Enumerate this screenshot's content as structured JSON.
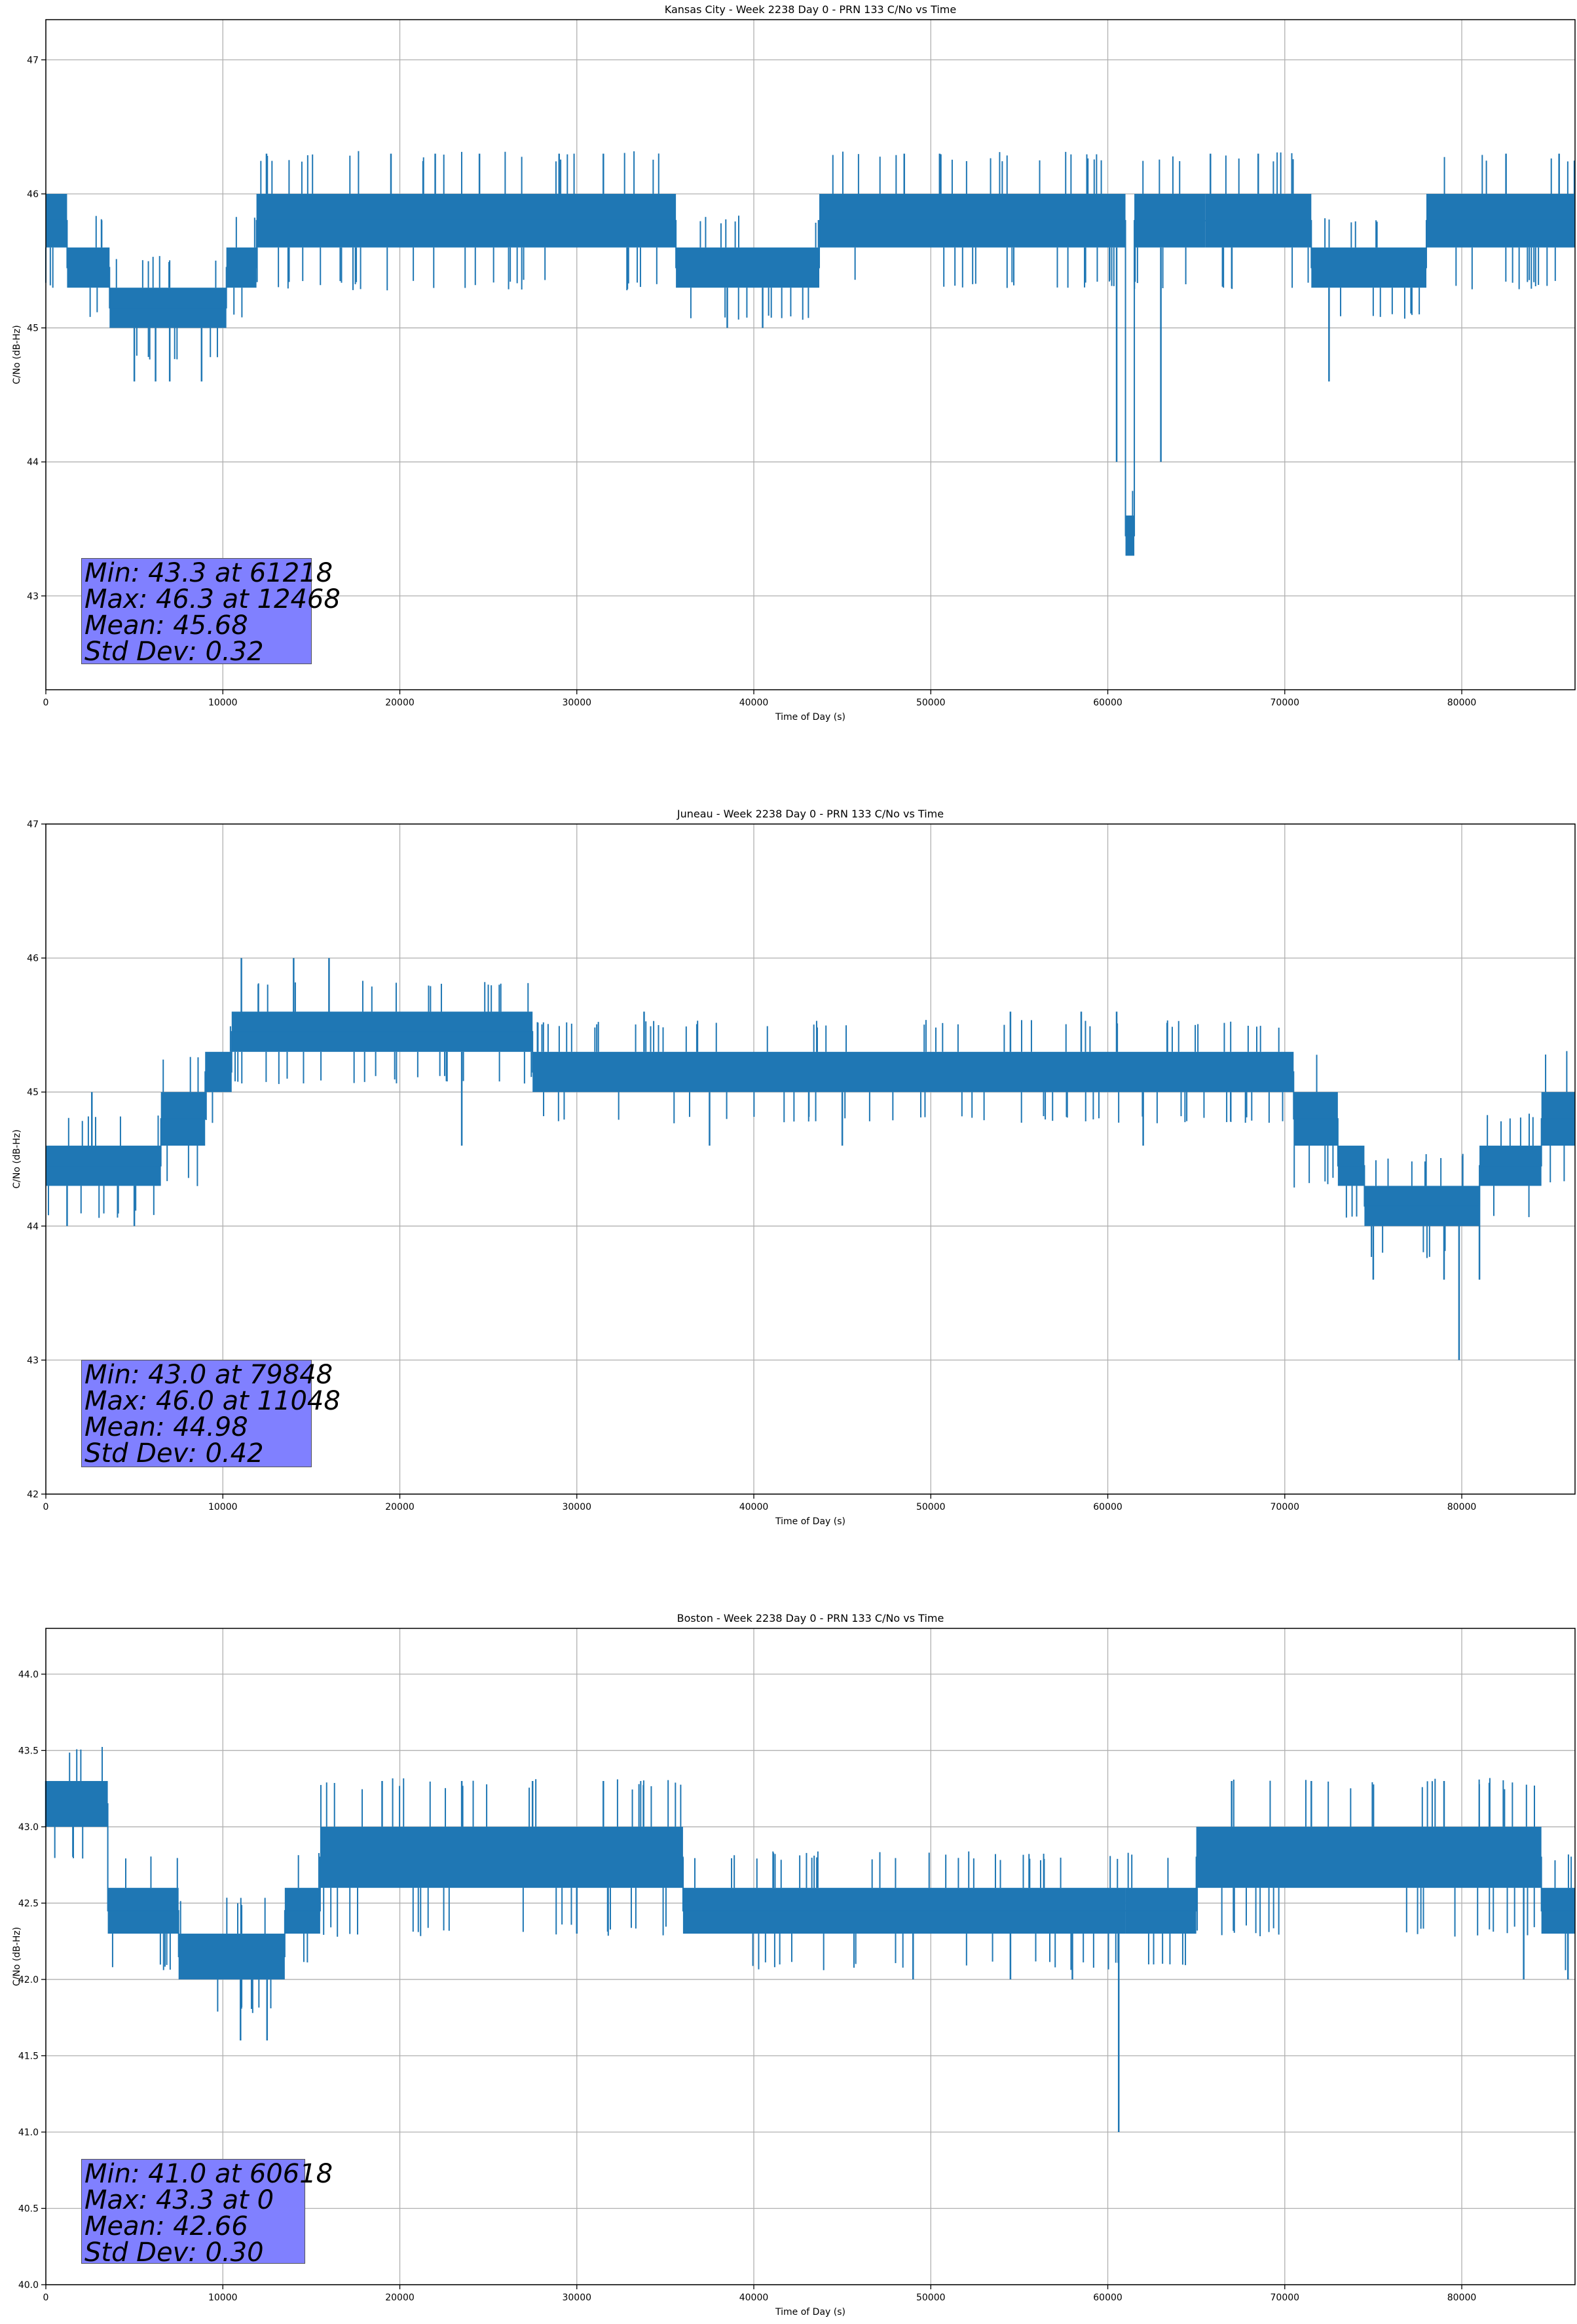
{
  "chart_data": [
    {
      "type": "line",
      "title": "Kansas City - Week 2238 Day 0 - PRN 133 C/No vs Time",
      "xlabel": "Time of Day (s)",
      "ylabel": "C/No (dB-Hz)",
      "xlim": [
        0,
        86400
      ],
      "ylim": [
        42.3,
        47.3
      ],
      "xticks": [
        0,
        10000,
        20000,
        30000,
        40000,
        50000,
        60000,
        70000,
        80000
      ],
      "yticks": [
        43,
        44,
        45,
        46,
        47
      ],
      "ytick_labels": [
        "43",
        "44",
        "45",
        "46",
        "47"
      ],
      "grid": true,
      "series_color": "#1f77b4",
      "stats": {
        "min": "Min: 43.3 at 61218",
        "max": "Max: 46.3 at 12468",
        "mean": "Mean: 45.68",
        "std": "Std Dev: 0.32"
      },
      "bands": [
        {
          "x": [
            0,
            1200
          ],
          "y": [
            45.6,
            46.0
          ]
        },
        {
          "x": [
            1200,
            3600
          ],
          "y": [
            45.3,
            45.6
          ]
        },
        {
          "x": [
            3600,
            10200
          ],
          "y": [
            45.0,
            45.3
          ]
        },
        {
          "x": [
            10200,
            11900
          ],
          "y": [
            45.3,
            45.6
          ]
        },
        {
          "x": [
            11900,
            35600
          ],
          "y": [
            45.6,
            46.0
          ]
        },
        {
          "x": [
            35600,
            43700
          ],
          "y": [
            45.3,
            45.6
          ]
        },
        {
          "x": [
            43700,
            61000
          ],
          "y": [
            45.6,
            46.0
          ]
        },
        {
          "x": [
            61000,
            61500
          ],
          "y": [
            43.3,
            43.6
          ]
        },
        {
          "x": [
            61500,
            65500
          ],
          "y": [
            45.6,
            46.0
          ]
        },
        {
          "x": [
            65500,
            71500
          ],
          "y": [
            45.6,
            46.0
          ]
        },
        {
          "x": [
            71500,
            78000
          ],
          "y": [
            45.3,
            45.6
          ]
        },
        {
          "x": [
            78000,
            86400
          ],
          "y": [
            45.6,
            46.0
          ]
        }
      ],
      "spikes": [
        {
          "x": 5000,
          "y": 44.6
        },
        {
          "x": 6200,
          "y": 44.6
        },
        {
          "x": 7000,
          "y": 44.6
        },
        {
          "x": 8800,
          "y": 44.6
        },
        {
          "x": 12468,
          "y": 46.3
        },
        {
          "x": 19500,
          "y": 46.3
        },
        {
          "x": 22000,
          "y": 46.3
        },
        {
          "x": 24500,
          "y": 46.3
        },
        {
          "x": 29000,
          "y": 46.3
        },
        {
          "x": 31500,
          "y": 46.3
        },
        {
          "x": 38500,
          "y": 45.0
        },
        {
          "x": 40500,
          "y": 45.0
        },
        {
          "x": 48500,
          "y": 46.3
        },
        {
          "x": 50500,
          "y": 46.3
        },
        {
          "x": 60500,
          "y": 44.0
        },
        {
          "x": 61218,
          "y": 43.3
        },
        {
          "x": 63000,
          "y": 44.0
        },
        {
          "x": 65800,
          "y": 46.3
        },
        {
          "x": 68500,
          "y": 46.3
        },
        {
          "x": 72500,
          "y": 44.6
        },
        {
          "x": 82500,
          "y": 46.3
        },
        {
          "x": 85500,
          "y": 46.3
        }
      ]
    },
    {
      "type": "line",
      "title": "Juneau - Week 2238 Day 0 - PRN 133 C/No vs Time",
      "xlabel": "Time of Day (s)",
      "ylabel": "C/No (dB-Hz)",
      "xlim": [
        0,
        86400
      ],
      "ylim": [
        42,
        47
      ],
      "xticks": [
        0,
        10000,
        20000,
        30000,
        40000,
        50000,
        60000,
        70000,
        80000
      ],
      "yticks": [
        42,
        43,
        44,
        45,
        46,
        47
      ],
      "ytick_labels": [
        "42",
        "43",
        "44",
        "45",
        "46",
        "47"
      ],
      "grid": true,
      "series_color": "#1f77b4",
      "stats": {
        "min": "Min: 43.0 at 79848",
        "max": "Max: 46.0 at 11048",
        "mean": "Mean: 44.98",
        "std": "Std Dev: 0.42"
      },
      "bands": [
        {
          "x": [
            0,
            6500
          ],
          "y": [
            44.3,
            44.6
          ]
        },
        {
          "x": [
            6500,
            9000
          ],
          "y": [
            44.6,
            45.0
          ]
        },
        {
          "x": [
            9000,
            10500
          ],
          "y": [
            45.0,
            45.3
          ]
        },
        {
          "x": [
            10500,
            27500
          ],
          "y": [
            45.3,
            45.6
          ]
        },
        {
          "x": [
            27500,
            70500
          ],
          "y": [
            45.0,
            45.3
          ]
        },
        {
          "x": [
            70500,
            73000
          ],
          "y": [
            44.6,
            45.0
          ]
        },
        {
          "x": [
            73000,
            74500
          ],
          "y": [
            44.3,
            44.6
          ]
        },
        {
          "x": [
            74500,
            81000
          ],
          "y": [
            44.0,
            44.3
          ]
        },
        {
          "x": [
            81000,
            84500
          ],
          "y": [
            44.3,
            44.6
          ]
        },
        {
          "x": [
            84500,
            86400
          ],
          "y": [
            44.6,
            45.0
          ]
        }
      ],
      "spikes": [
        {
          "x": 1200,
          "y": 44.0
        },
        {
          "x": 2600,
          "y": 45.0
        },
        {
          "x": 5000,
          "y": 44.0
        },
        {
          "x": 11048,
          "y": 46.0
        },
        {
          "x": 14000,
          "y": 46.0
        },
        {
          "x": 16000,
          "y": 46.0
        },
        {
          "x": 23500,
          "y": 44.6
        },
        {
          "x": 33800,
          "y": 45.6
        },
        {
          "x": 37500,
          "y": 44.6
        },
        {
          "x": 45000,
          "y": 44.6
        },
        {
          "x": 54500,
          "y": 45.6
        },
        {
          "x": 58500,
          "y": 45.6
        },
        {
          "x": 60500,
          "y": 45.6
        },
        {
          "x": 62000,
          "y": 44.6
        },
        {
          "x": 75000,
          "y": 43.6
        },
        {
          "x": 79000,
          "y": 43.6
        },
        {
          "x": 79848,
          "y": 43.0
        },
        {
          "x": 81000,
          "y": 43.6
        }
      ]
    },
    {
      "type": "line",
      "title": "Boston - Week 2238 Day 0 - PRN 133 C/No vs Time",
      "xlabel": "Time of Day (s)",
      "ylabel": "C/No (dB-Hz)",
      "xlim": [
        0,
        86400
      ],
      "ylim": [
        40.0,
        44.3
      ],
      "xticks": [
        0,
        10000,
        20000,
        30000,
        40000,
        50000,
        60000,
        70000,
        80000
      ],
      "yticks": [
        40.0,
        40.5,
        41.0,
        41.5,
        42.0,
        42.5,
        43.0,
        43.5,
        44.0
      ],
      "ytick_labels": [
        "40.0",
        "40.5",
        "41.0",
        "41.5",
        "42.0",
        "42.5",
        "43.0",
        "43.5",
        "44.0"
      ],
      "grid": true,
      "series_color": "#1f77b4",
      "stats": {
        "min": "Min: 41.0 at 60618",
        "max": "Max: 43.3 at 0",
        "mean": "Mean: 42.66",
        "std": "Std Dev: 0.30"
      },
      "bands": [
        {
          "x": [
            0,
            3500
          ],
          "y": [
            43.0,
            43.3
          ]
        },
        {
          "x": [
            3500,
            7500
          ],
          "y": [
            42.3,
            42.6
          ]
        },
        {
          "x": [
            7500,
            13500
          ],
          "y": [
            42.0,
            42.3
          ]
        },
        {
          "x": [
            13500,
            15500
          ],
          "y": [
            42.3,
            42.6
          ]
        },
        {
          "x": [
            15500,
            36000
          ],
          "y": [
            42.6,
            43.0
          ]
        },
        {
          "x": [
            36000,
            61000
          ],
          "y": [
            42.3,
            42.6
          ]
        },
        {
          "x": [
            61000,
            65000
          ],
          "y": [
            42.3,
            42.6
          ]
        },
        {
          "x": [
            65000,
            84500
          ],
          "y": [
            42.6,
            43.0
          ]
        },
        {
          "x": [
            84500,
            86400
          ],
          "y": [
            42.3,
            42.6
          ]
        }
      ],
      "spikes": [
        {
          "x": 0,
          "y": 43.3
        },
        {
          "x": 11000,
          "y": 41.6
        },
        {
          "x": 12500,
          "y": 41.6
        },
        {
          "x": 19000,
          "y": 43.3
        },
        {
          "x": 23500,
          "y": 43.3
        },
        {
          "x": 27500,
          "y": 43.3
        },
        {
          "x": 30000,
          "y": 42.3
        },
        {
          "x": 31500,
          "y": 43.3
        },
        {
          "x": 49000,
          "y": 42.0
        },
        {
          "x": 54500,
          "y": 42.0
        },
        {
          "x": 58000,
          "y": 42.0
        },
        {
          "x": 60618,
          "y": 41.0
        },
        {
          "x": 67000,
          "y": 43.3
        },
        {
          "x": 71500,
          "y": 43.3
        },
        {
          "x": 79000,
          "y": 43.3
        },
        {
          "x": 83500,
          "y": 42.0
        },
        {
          "x": 86000,
          "y": 42.0
        }
      ]
    }
  ]
}
